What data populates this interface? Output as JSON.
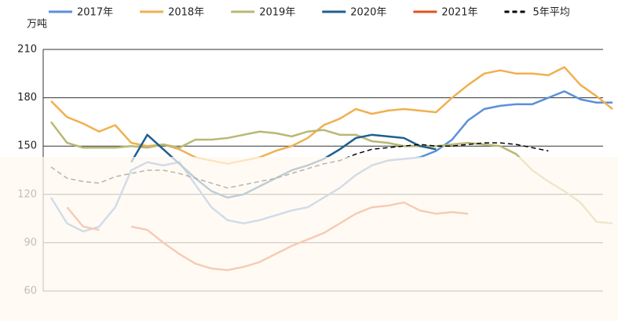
{
  "chart_data": {
    "type": "line",
    "y_label": "万吨",
    "x": [
      0,
      1,
      2,
      3,
      4,
      5,
      6,
      7,
      8,
      9,
      10,
      11,
      12,
      13,
      14,
      15,
      16,
      17,
      18,
      19,
      20,
      21,
      22,
      23,
      24,
      25,
      26,
      27,
      28,
      29,
      30,
      31,
      32,
      33,
      34,
      35
    ],
    "xlim": [
      0,
      35
    ],
    "ylim": [
      60,
      210
    ],
    "yticks": [
      60,
      90,
      120,
      150,
      180,
      210
    ],
    "grid": true,
    "legend": "top",
    "series": [
      {
        "name": "2017年",
        "color": "#5b8fd9",
        "values": [
          118,
          102,
          97,
          100,
          112,
          135,
          140,
          138,
          140,
          126,
          112,
          104,
          102,
          104,
          107,
          110,
          112,
          118,
          124,
          132,
          138,
          141,
          142,
          143,
          147,
          154,
          166,
          173,
          175,
          176,
          176,
          180,
          184,
          179,
          177,
          177
        ]
      },
      {
        "name": "2018年",
        "color": "#f0b050",
        "values": [
          178,
          168,
          164,
          159,
          163,
          152,
          150,
          151,
          148,
          143,
          141,
          139,
          141,
          143,
          147,
          150,
          155,
          163,
          167,
          173,
          170,
          172,
          173,
          172,
          171,
          180,
          188,
          195,
          197,
          195,
          195,
          194,
          199,
          188,
          181,
          173
        ]
      },
      {
        "name": "2019年",
        "color": "#b9b874",
        "values": [
          165,
          152,
          149,
          149,
          149,
          150,
          149,
          151,
          149,
          154,
          154,
          155,
          157,
          159,
          158,
          156,
          159,
          160,
          157,
          157,
          153,
          152,
          150,
          150,
          150,
          151,
          152,
          151,
          150,
          145,
          135,
          128,
          122,
          115,
          103,
          102
        ]
      },
      {
        "name": "2020年",
        "color": "#1f5f8f",
        "values": [
          null,
          null,
          null,
          null,
          null,
          140,
          157,
          148,
          139,
          130,
          122,
          118,
          120,
          125,
          130,
          135,
          138,
          142,
          148,
          155,
          157,
          156,
          155,
          150,
          148,
          null,
          null,
          null,
          null,
          null,
          null,
          null,
          null,
          null,
          null,
          null
        ]
      },
      {
        "name": "2021年",
        "color": "#e0521e",
        "values": [
          null,
          112,
          100,
          98,
          null,
          100,
          98,
          90,
          83,
          77,
          74,
          73,
          75,
          78,
          83,
          88,
          92,
          96,
          102,
          108,
          112,
          113,
          115,
          110,
          108,
          109,
          108,
          null,
          null,
          null,
          null,
          null,
          null,
          null,
          null,
          null
        ]
      },
      {
        "name": "5年平均",
        "color": "#000000",
        "dash": true,
        "values": [
          137,
          130,
          128,
          127,
          131,
          133,
          135,
          135,
          133,
          130,
          127,
          124,
          126,
          128,
          130,
          133,
          136,
          139,
          141,
          145,
          148,
          149,
          150,
          151,
          150,
          150,
          151,
          152,
          152,
          151,
          149,
          147,
          null,
          null,
          null,
          null
        ]
      }
    ]
  }
}
